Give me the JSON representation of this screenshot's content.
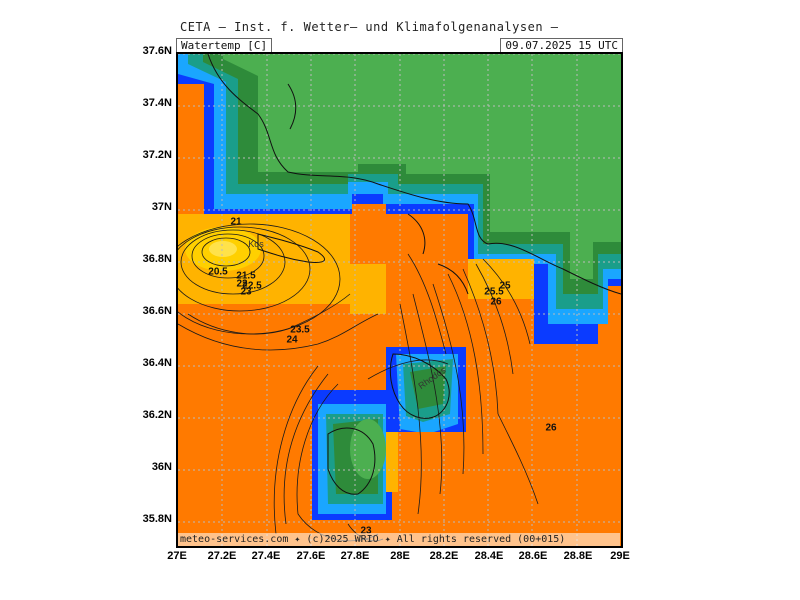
{
  "header": {
    "title": "CETA — Inst. f. Wetter— und Klimafolgenanalysen —",
    "parameter": "Watertemp [C]",
    "valid_time": "09.07.2025  15 UTC"
  },
  "footer": {
    "credit": "meteo-services.com ✦ (c)2025 WRIO ✦ All rights reserved (00+015)"
  },
  "axes": {
    "lat_labels": [
      "37.6N",
      "37.4N",
      "37.2N",
      "37N",
      "36.8N",
      "36.6N",
      "36.4N",
      "36.2N",
      "36N",
      "35.8N"
    ],
    "lon_labels": [
      "27E",
      "27.2E",
      "27.4E",
      "27.6E",
      "27.8E",
      "28E",
      "28.2E",
      "28.4E",
      "28.6E",
      "28.8E",
      "29E"
    ]
  },
  "places": {
    "kos": "Kos",
    "rhodes": "Rhodos"
  },
  "contour_labels": [
    "21",
    "20.5",
    "21.5",
    "22",
    "22.5",
    "23",
    "23.5",
    "24",
    "25",
    "25.5",
    "26",
    "26",
    "23"
  ],
  "colors": {
    "land": "#4caf50",
    "land_dark": "#2e8b3a",
    "coast_teal": "#1a9e8a",
    "water_blue": "#0b3bff",
    "water_cyan": "#1aa6ff",
    "sea_orange": "#ff7a00",
    "sea_gold": "#ffb300",
    "sea_yellow": "#ffd000"
  }
}
